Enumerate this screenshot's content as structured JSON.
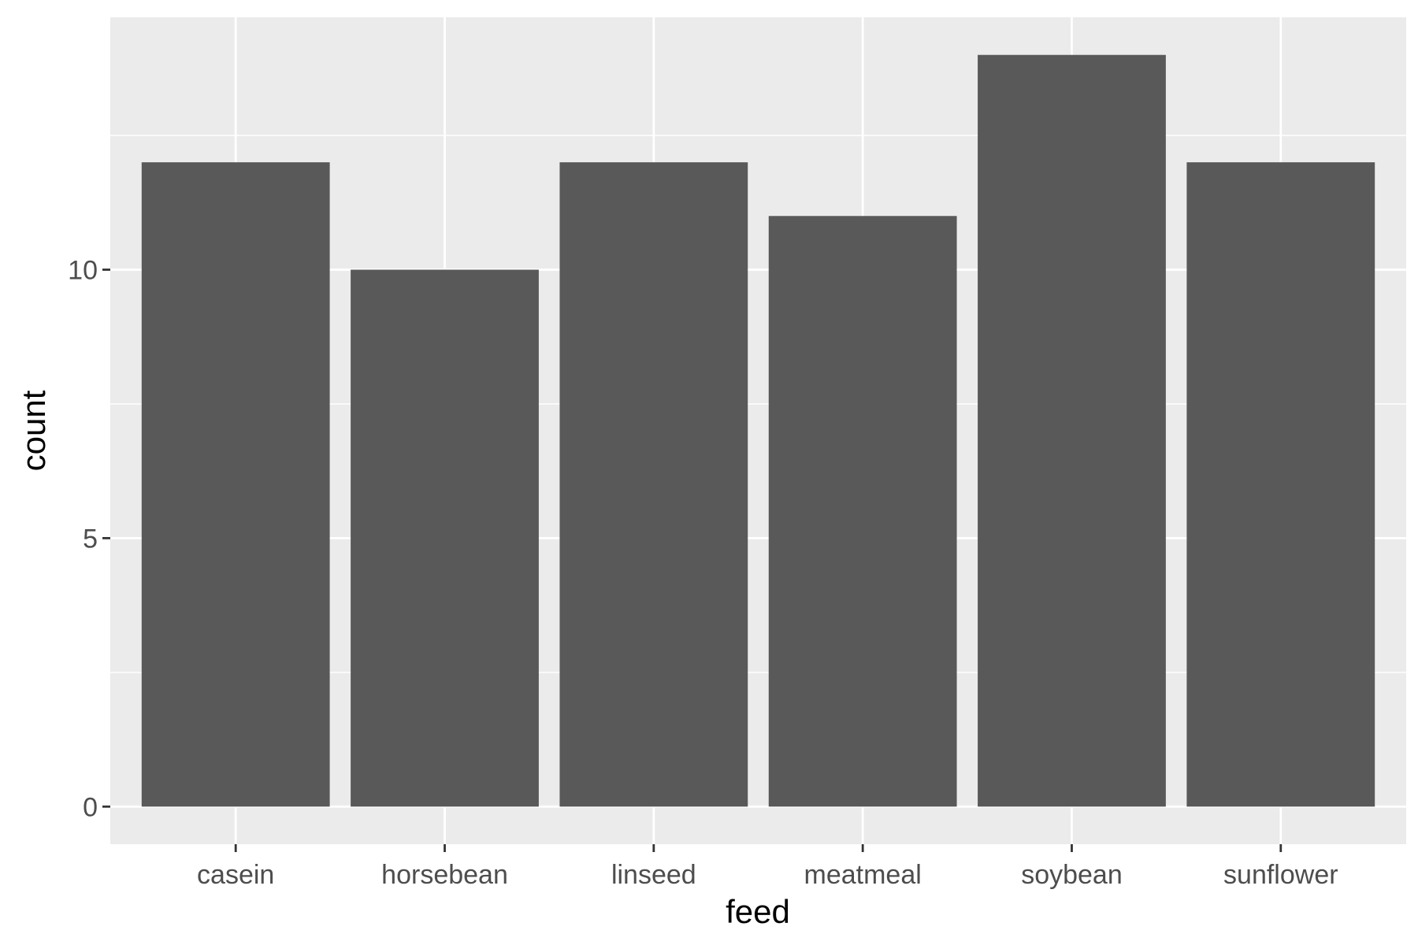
{
  "chart_data": {
    "type": "bar",
    "title": "",
    "xlabel": "feed",
    "ylabel": "count",
    "categories": [
      "casein",
      "horsebean",
      "linseed",
      "meatmeal",
      "soybean",
      "sunflower"
    ],
    "values": [
      12,
      10,
      12,
      11,
      14,
      12
    ],
    "ylim": [
      -0.7,
      14.7
    ],
    "yticks": [
      0,
      5,
      10
    ],
    "ytick_labels": [
      "0",
      "5",
      "10"
    ],
    "grid": true,
    "legend": "none",
    "colors": {
      "bar": "#595959",
      "panel": "#ebebeb",
      "grid": "#ffffff",
      "tick_label": "#4d4d4d",
      "axis_title": "#000000"
    }
  }
}
